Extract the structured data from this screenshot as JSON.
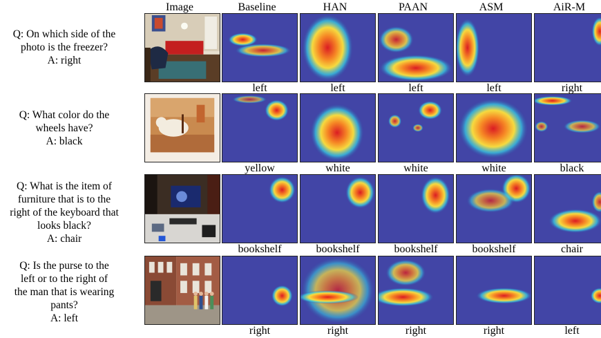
{
  "headers": [
    "Image",
    "Baseline",
    "HAN",
    "PAAN",
    "ASM",
    "AiR-M"
  ],
  "rows": [
    {
      "question_lines": [
        "Q: On which side of the",
        "photo is the freezer?",
        "A: right"
      ],
      "answers": [
        "left",
        "left",
        "left",
        "left",
        "right"
      ],
      "scene": "living-room"
    },
    {
      "question_lines": [
        "Q: What color do the",
        "wheels have?",
        "A: black"
      ],
      "answers": [
        "yellow",
        "white",
        "white",
        "white",
        "black"
      ],
      "scene": "dog-photo"
    },
    {
      "question_lines": [
        "Q: What is the item of",
        "furniture that is to the",
        "right of the keyboard that",
        "looks black?",
        "A: chair"
      ],
      "answers": [
        "bookshelf",
        "bookshelf",
        "bookshelf",
        "bookshelf",
        "chair"
      ],
      "scene": "desk"
    },
    {
      "question_lines": [
        "Q: Is the purse to the",
        "left or to the right of",
        "the man that is wearing",
        "pants?",
        "A: left"
      ],
      "answers": [
        "right",
        "right",
        "right",
        "right",
        "left"
      ],
      "scene": "street"
    }
  ],
  "colors": {
    "cold": "#2c2f9a",
    "hot": "#e31a1c",
    "warm": "#ffd21f",
    "mid": "#36d3e6"
  }
}
